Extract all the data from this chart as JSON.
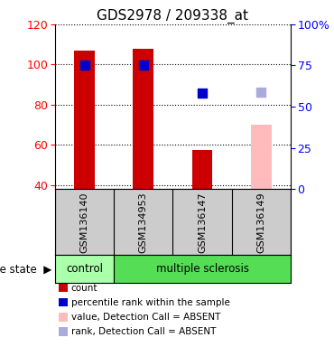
{
  "title": "GDS2978 / 209338_at",
  "samples": [
    "GSM136140",
    "GSM134953",
    "GSM136147",
    "GSM136149"
  ],
  "bar_values": [
    107,
    108,
    57.5,
    null
  ],
  "pink_bar_values": [
    null,
    null,
    null,
    70
  ],
  "blue_dot_right_values": [
    75,
    75.5,
    58,
    null
  ],
  "lavender_dot_right_values": [
    null,
    null,
    null,
    59
  ],
  "ylim_left": [
    38,
    120
  ],
  "ylim_right": [
    0,
    100
  ],
  "yticks_left": [
    40,
    60,
    80,
    100,
    120
  ],
  "yticks_right": [
    0,
    25,
    50,
    75,
    100
  ],
  "ytick_labels_right": [
    "0",
    "25",
    "50",
    "75",
    "100%"
  ],
  "bar_color": "#cc0000",
  "pink_color": "#ffbbbb",
  "blue_color": "#0000cc",
  "lavender_color": "#aaaadd",
  "bar_width": 0.35,
  "dot_size": 50,
  "grid_color": "black",
  "label_bg_color": "#cccccc",
  "control_color": "#aaffaa",
  "ms_color": "#55dd55",
  "legend_colors": [
    "#cc0000",
    "#0000cc",
    "#ffbbbb",
    "#aaaadd"
  ],
  "legend_labels": [
    "count",
    "percentile rank within the sample",
    "value, Detection Call = ABSENT",
    "rank, Detection Call = ABSENT"
  ]
}
